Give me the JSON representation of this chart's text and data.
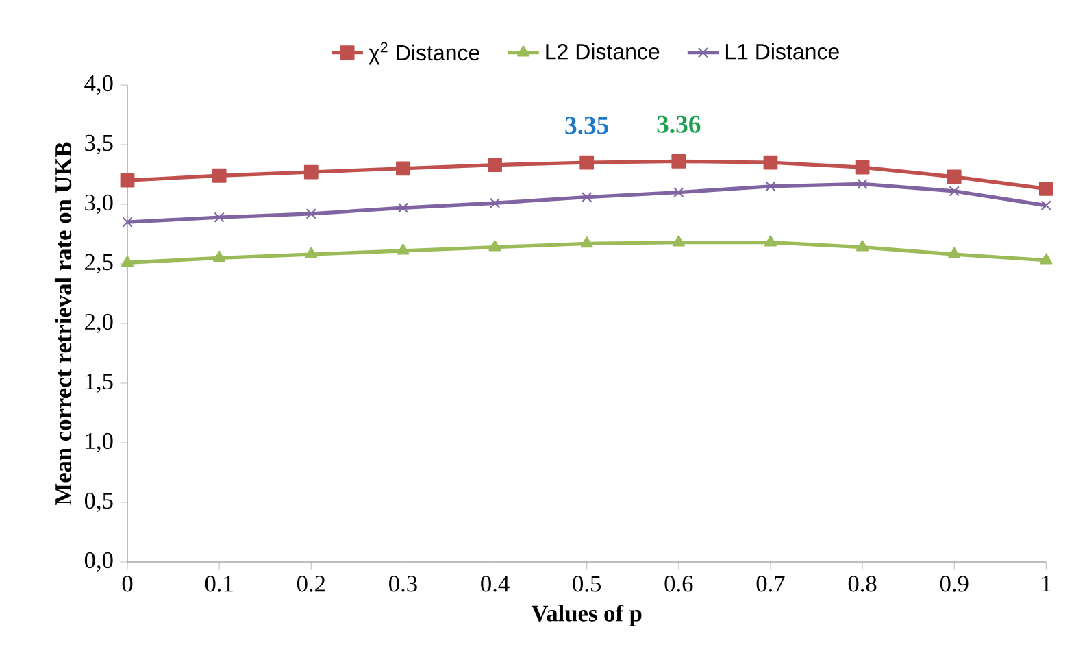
{
  "chart_data": {
    "type": "line",
    "xlabel": "Values of p",
    "ylabel": "Mean correct retrieval rate on UKB",
    "x": [
      0,
      0.1,
      0.2,
      0.3,
      0.4,
      0.5,
      0.6,
      0.7,
      0.8,
      0.9,
      1
    ],
    "series": [
      {
        "name": "χ$^{2}$ Distance",
        "color": "#c0504d",
        "marker": "square",
        "values": [
          3.2,
          3.24,
          3.27,
          3.3,
          3.33,
          3.35,
          3.36,
          3.35,
          3.31,
          3.23,
          3.13
        ]
      },
      {
        "name": "L2 Distance",
        "color": "#9bbb59",
        "marker": "triangle",
        "values": [
          2.51,
          2.55,
          2.58,
          2.61,
          2.64,
          2.67,
          2.68,
          2.68,
          2.64,
          2.58,
          2.53
        ]
      },
      {
        "name": "L1 Distance",
        "color": "#8064a2",
        "marker": "cross",
        "values": [
          2.85,
          2.89,
          2.92,
          2.97,
          3.01,
          3.06,
          3.1,
          3.15,
          3.17,
          3.11,
          2.99
        ]
      }
    ],
    "xlim": [
      0,
      1
    ],
    "xticks": [
      0,
      0.1,
      0.2,
      0.3,
      0.4,
      0.5,
      0.6,
      0.7,
      0.8,
      0.9,
      1
    ],
    "ylim": [
      0,
      4
    ],
    "yticks": [
      {
        "value": 0,
        "label": "0,0"
      },
      {
        "value": 0.5,
        "label": "0,5"
      },
      {
        "value": 1,
        "label": "1,0"
      },
      {
        "value": 1.5,
        "label": "1,5"
      },
      {
        "value": 2,
        "label": "2,0"
      },
      {
        "value": 2.5,
        "label": "2,5"
      },
      {
        "value": 3,
        "label": "3,0"
      },
      {
        "value": 3.5,
        "label": "3,5"
      },
      {
        "value": 4,
        "label": "4,0"
      }
    ],
    "annotations": [
      {
        "text": "3.35",
        "x": 0.5,
        "y": 3.35
      },
      {
        "text": "3.36",
        "x": 0.6,
        "y": 3.36
      }
    ],
    "legend": "top",
    "grid": false,
    "line_style": "solid"
  }
}
